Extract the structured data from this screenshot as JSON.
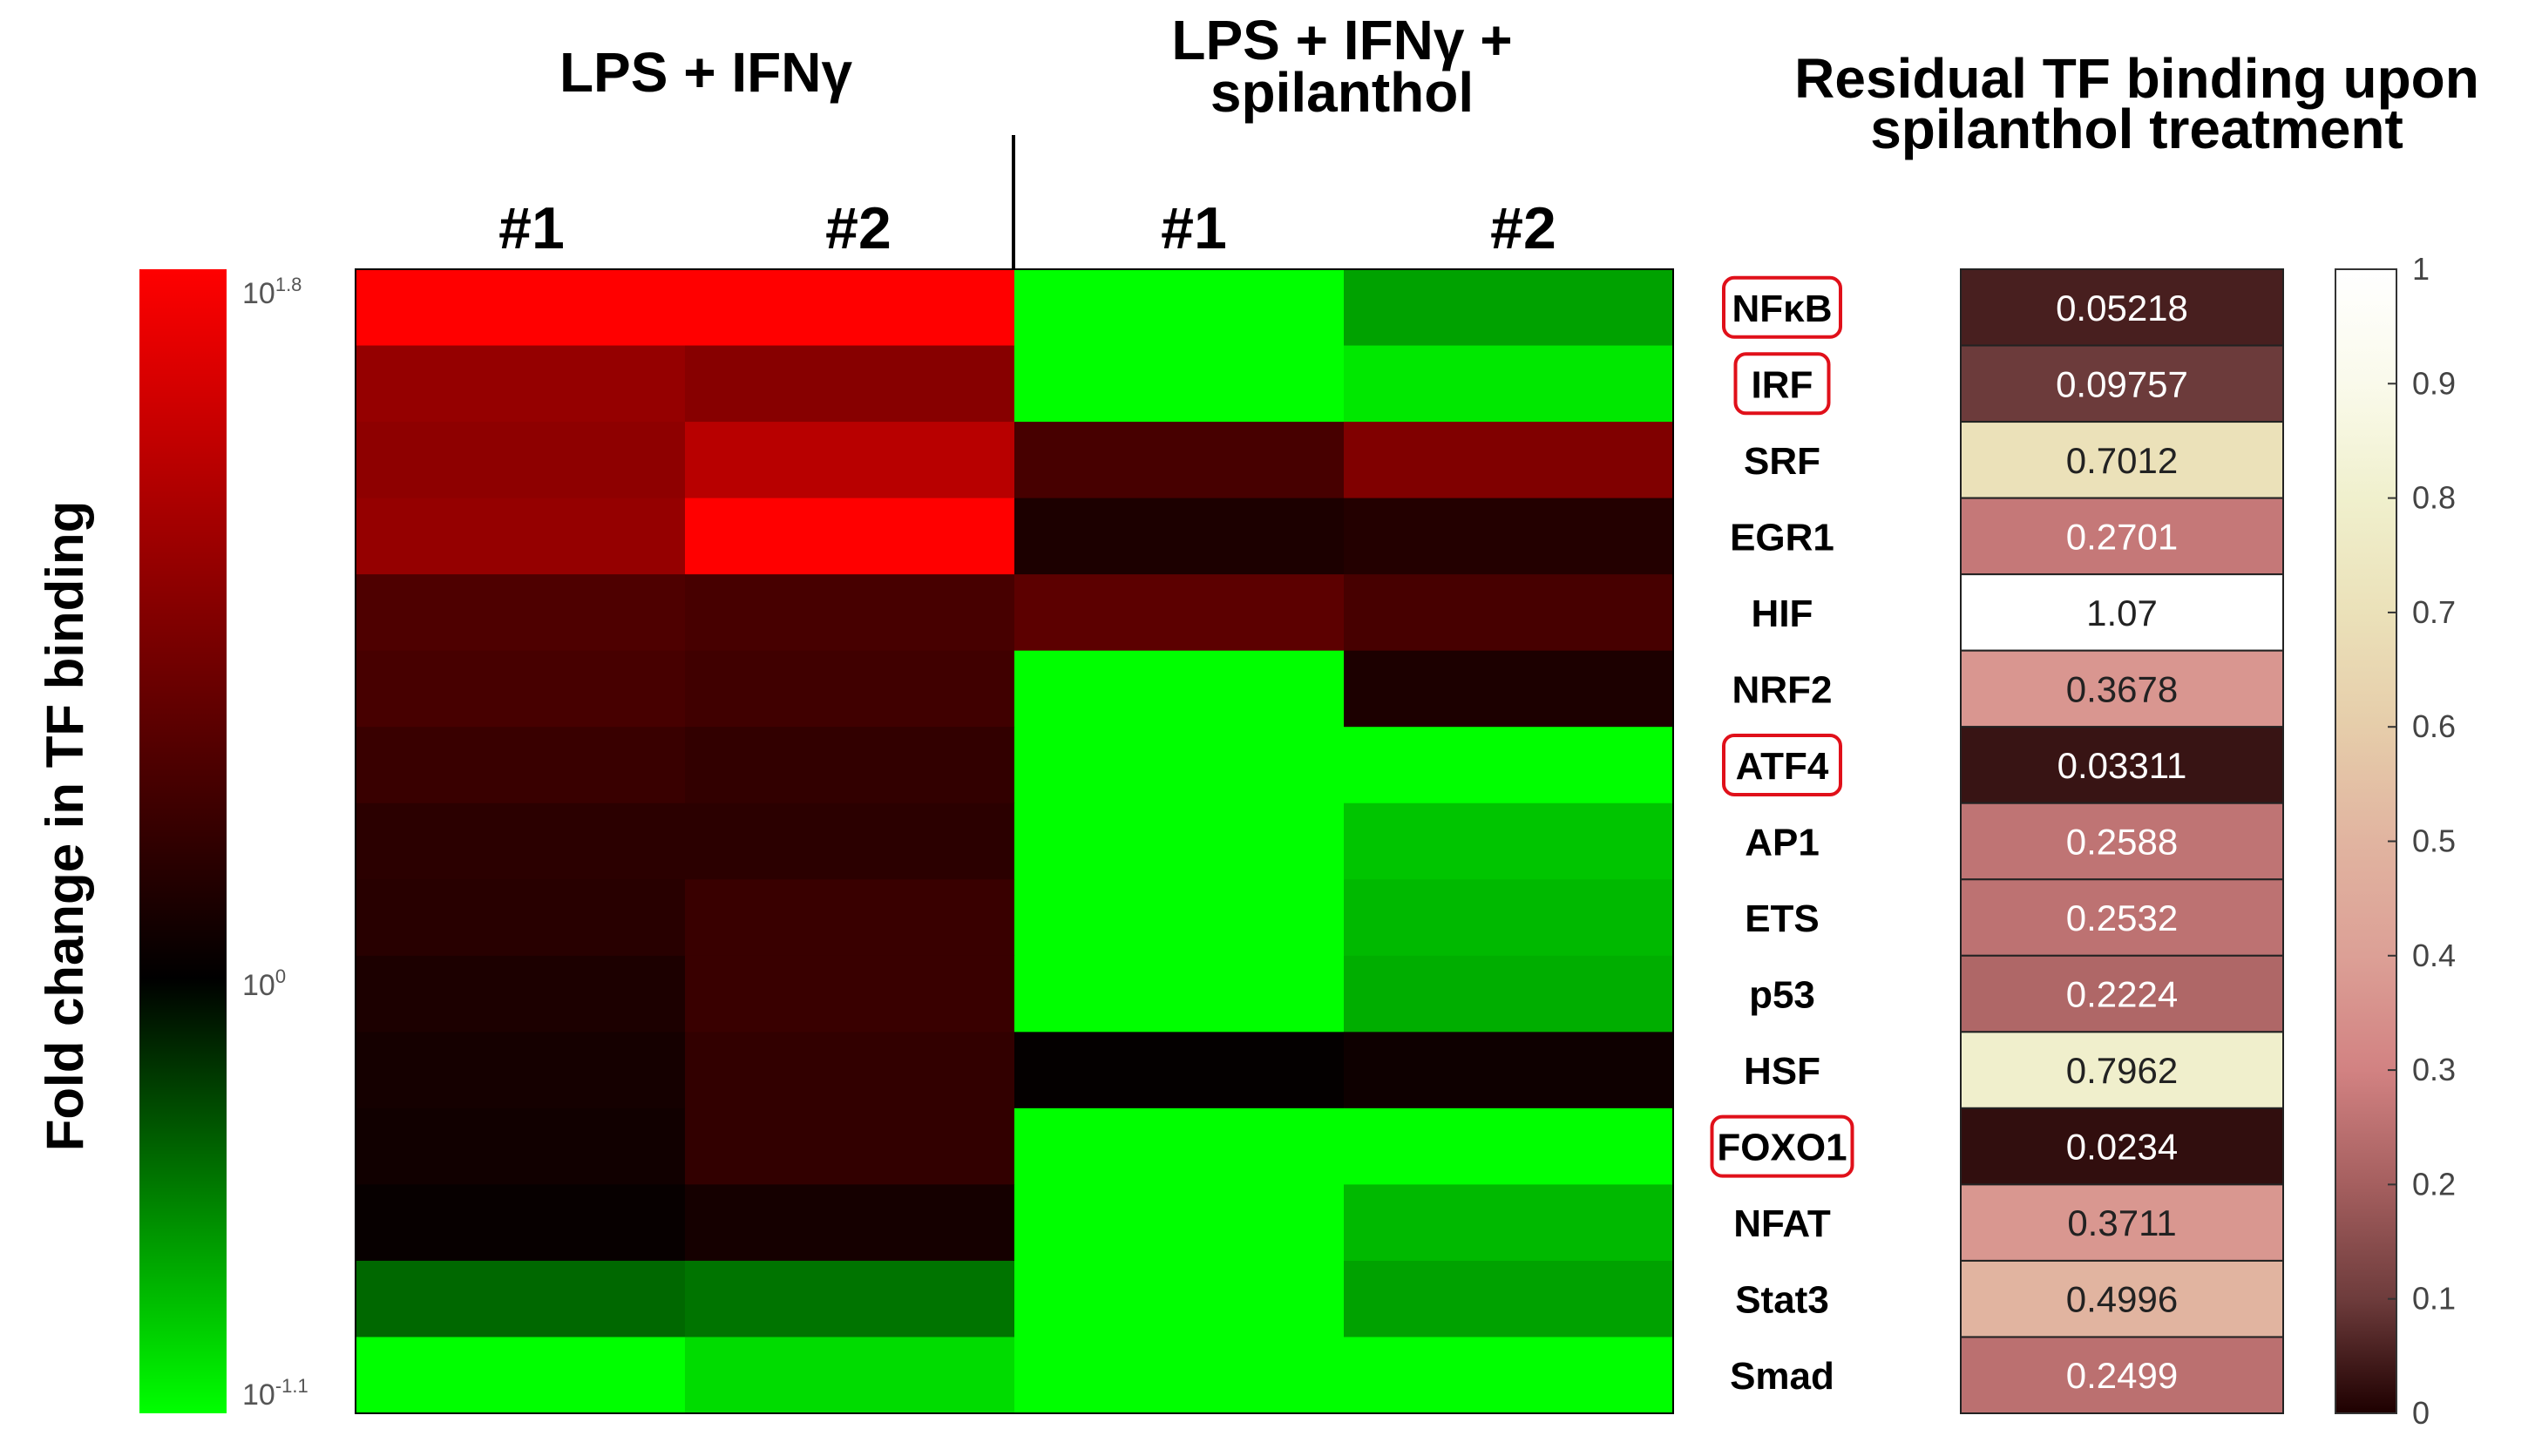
{
  "chart_data": [
    {
      "type": "heatmap",
      "column_groups": [
        {
          "label": "LPS + IFNγ",
          "columns": [
            "#1",
            "#2"
          ]
        },
        {
          "label_line1": "LPS + IFNγ +",
          "label_line2": "spilanthol",
          "columns": [
            "#1",
            "#2"
          ]
        }
      ],
      "rows": [
        "NFκB",
        "IRF",
        "SRF",
        "EGR1",
        "HIF",
        "NRF2",
        "ATF4",
        "AP1",
        "ETS",
        "p53",
        "HSF",
        "FOXO1",
        "NFAT",
        "Stat3",
        "Smad"
      ],
      "highlighted_rows": [
        "NFκB",
        "IRF",
        "ATF4",
        "FOXO1"
      ],
      "colorbar": {
        "label": "Fold change in TF binding",
        "colormap": "green-black-red",
        "scale": "log10",
        "ticks": [
          {
            "base": "10",
            "exp": "1.8",
            "value": 1.8
          },
          {
            "base": "10",
            "exp": "0",
            "value": 0
          },
          {
            "base": "10",
            "exp": "-1.1",
            "value": -1.1
          }
        ],
        "range_log10": [
          -1.1,
          1.8
        ]
      },
      "values_log10": [
        [
          1.8,
          1.8,
          -1.1,
          -0.7
        ],
        [
          1.05,
          0.95,
          -1.1,
          -1.0
        ],
        [
          1.0,
          1.3,
          0.5,
          0.9
        ],
        [
          1.05,
          1.8,
          0.2,
          0.25
        ],
        [
          0.55,
          0.5,
          0.65,
          0.5
        ],
        [
          0.5,
          0.45,
          -1.1,
          0.2
        ],
        [
          0.4,
          0.35,
          -1.1,
          -1.1
        ],
        [
          0.3,
          0.3,
          -1.1,
          -0.85
        ],
        [
          0.28,
          0.4,
          -1.1,
          -0.8
        ],
        [
          0.2,
          0.4,
          -1.1,
          -0.75
        ],
        [
          0.15,
          0.35,
          0.03,
          0.1
        ],
        [
          0.12,
          0.35,
          -1.1,
          -1.1
        ],
        [
          0.05,
          0.15,
          -1.1,
          -0.8
        ],
        [
          -0.45,
          -0.5,
          -1.1,
          -0.7
        ],
        [
          -1.1,
          -0.95,
          -1.1,
          -1.1
        ]
      ]
    },
    {
      "type": "heatmap",
      "title_line1": "Residual TF binding upon",
      "title_line2": "spilanthol treatment",
      "rows": [
        "NFκB",
        "IRF",
        "SRF",
        "EGR1",
        "HIF",
        "NRF2",
        "ATF4",
        "AP1",
        "ETS",
        "p53",
        "HSF",
        "FOXO1",
        "NFAT",
        "Stat3",
        "Smad"
      ],
      "values": [
        0.05218,
        0.09757,
        0.7012,
        0.2701,
        1.07,
        0.3678,
        0.03311,
        0.2588,
        0.2532,
        0.2224,
        0.7962,
        0.0234,
        0.3711,
        0.4996,
        0.2499
      ],
      "value_labels": [
        "0.05218",
        "0.09757",
        "0.7012",
        "0.2701",
        "1.07",
        "0.3678",
        "0.03311",
        "0.2588",
        "0.2532",
        "0.2224",
        "0.7962",
        "0.0234",
        "0.3711",
        "0.4996",
        "0.2499"
      ],
      "colorbar": {
        "colormap": "pink",
        "range": [
          0,
          1
        ],
        "ticks": [
          "0",
          "0.1",
          "0.2",
          "0.3",
          "0.4",
          "0.5",
          "0.6",
          "0.7",
          "0.8",
          "0.9",
          "1"
        ]
      }
    }
  ]
}
